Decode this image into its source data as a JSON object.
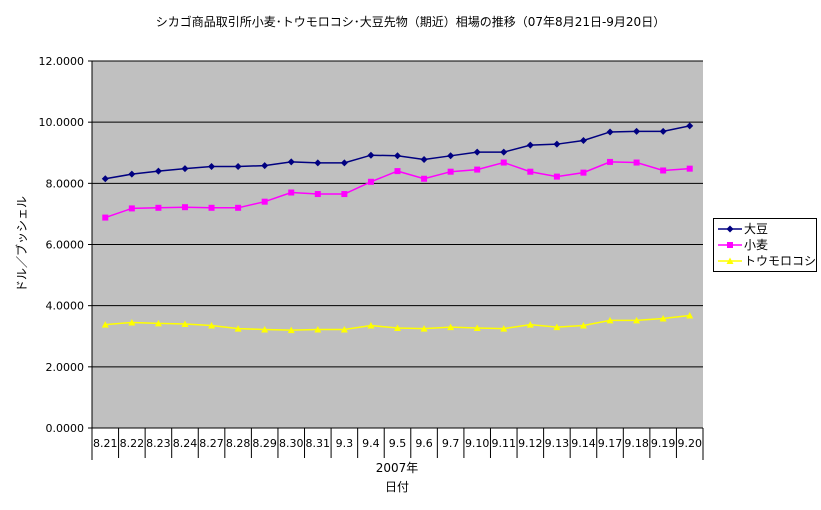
{
  "chart_data": {
    "type": "line",
    "title": "シカゴ商品取引所小麦･トウモロコシ･大豆先物（期近）相場の推移（07年8月21日‐9月20日）",
    "ylabel": "ドル／ブッシェル",
    "xlabel_group": "2007年",
    "xlabel": "日付",
    "ylim": [
      0,
      12
    ],
    "yticks": [
      "0.0000",
      "2.0000",
      "4.0000",
      "6.0000",
      "8.0000",
      "10.0000",
      "12.0000"
    ],
    "categories": [
      "8.21",
      "8.22",
      "8.23",
      "8.24",
      "8.27",
      "8.28",
      "8.29",
      "8.30",
      "8.31",
      "9.3",
      "9.4",
      "9.5",
      "9.6",
      "9.7",
      "9.10",
      "9.11",
      "9.12",
      "9.13",
      "9.14",
      "9.17",
      "9.18",
      "9.19",
      "9.20"
    ],
    "grid": true,
    "legend_position": "right",
    "series": [
      {
        "name": "大豆",
        "color": "#000080",
        "marker": "diamond",
        "values": [
          8.15,
          8.3,
          8.4,
          8.48,
          8.55,
          8.55,
          8.58,
          8.7,
          8.67,
          8.67,
          8.92,
          8.9,
          8.78,
          8.9,
          9.02,
          9.02,
          9.25,
          9.28,
          9.4,
          9.68,
          9.7,
          9.7,
          9.88
        ]
      },
      {
        "name": "小麦",
        "color": "#ff00ff",
        "marker": "square",
        "values": [
          6.88,
          7.18,
          7.2,
          7.22,
          7.2,
          7.2,
          7.4,
          7.7,
          7.65,
          7.65,
          8.05,
          8.4,
          8.15,
          8.38,
          8.45,
          8.68,
          8.38,
          8.22,
          8.35,
          8.7,
          8.68,
          8.42,
          8.48
        ]
      },
      {
        "name": "トウモロコシ",
        "color": "#ffff00",
        "marker": "triangle",
        "values": [
          3.38,
          3.45,
          3.42,
          3.4,
          3.35,
          3.25,
          3.22,
          3.2,
          3.22,
          3.22,
          3.35,
          3.27,
          3.25,
          3.3,
          3.27,
          3.25,
          3.38,
          3.3,
          3.35,
          3.52,
          3.52,
          3.58,
          3.68
        ]
      }
    ]
  }
}
